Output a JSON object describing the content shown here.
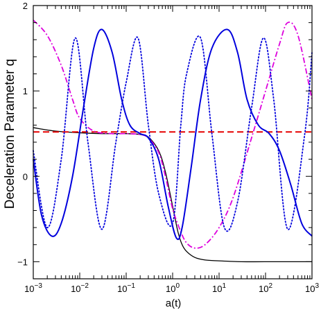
{
  "chart_data": {
    "type": "line",
    "title": "",
    "xlabel": "a(t)",
    "ylabel": "Deceleration Parameter q",
    "x_scale": "log",
    "xlim": [
      0.001,
      1000
    ],
    "ylim": [
      -1.2,
      2.0
    ],
    "grid": false,
    "legend": "none",
    "x_ticks": [
      {
        "value": 0.001,
        "base": "10",
        "exp": "−3"
      },
      {
        "value": 0.01,
        "base": "10",
        "exp": "−2"
      },
      {
        "value": 0.1,
        "base": "10",
        "exp": "−1"
      },
      {
        "value": 1,
        "base": "10",
        "exp": "0"
      },
      {
        "value": 10,
        "base": "10",
        "exp": "1"
      },
      {
        "value": 100,
        "base": "10",
        "exp": "2"
      },
      {
        "value": 1000,
        "base": "10",
        "exp": "3"
      }
    ],
    "y_ticks": [
      {
        "value": -1,
        "label": "−1"
      },
      {
        "value": 0,
        "label": "0"
      },
      {
        "value": 1,
        "label": "1"
      },
      {
        "value": 2,
        "label": "2"
      }
    ],
    "series": [
      {
        "color": "#000000",
        "style": "solid",
        "x": [
          0.001,
          0.003,
          0.01,
          0.03,
          0.1,
          0.2,
          0.3,
          0.5,
          0.7,
          1.0,
          1.3,
          1.6,
          2,
          3,
          5,
          10,
          30,
          100,
          1000
        ],
        "y": [
          0.57,
          0.53,
          0.51,
          0.5,
          0.5,
          0.49,
          0.46,
          0.3,
          0.05,
          -0.35,
          -0.65,
          -0.8,
          -0.88,
          -0.95,
          -0.98,
          -0.99,
          -1.0,
          -1.0,
          -1.0
        ]
      },
      {
        "color": "#e60000",
        "style": "dashed",
        "x": [
          0.001,
          1000
        ],
        "y": [
          0.52,
          0.52
        ]
      },
      {
        "color": "#dd00dd",
        "style": "dashdot",
        "x": [
          0.001,
          0.002,
          0.004,
          0.007,
          0.01,
          0.02,
          0.05,
          0.1,
          0.2,
          0.3,
          0.5,
          0.7,
          1.0,
          1.5,
          2,
          3,
          5,
          10,
          20,
          50,
          100,
          200,
          300,
          500,
          1000
        ],
        "y": [
          1.83,
          1.65,
          1.3,
          0.9,
          0.68,
          0.53,
          0.5,
          0.5,
          0.49,
          0.45,
          0.28,
          0.0,
          -0.38,
          -0.65,
          -0.78,
          -0.84,
          -0.8,
          -0.6,
          -0.25,
          0.45,
          1.0,
          1.55,
          1.8,
          1.65,
          0.9
        ]
      },
      {
        "color": "#0000dd",
        "style": "dotted",
        "x": [
          0.001,
          0.002,
          0.004,
          0.008,
          0.015,
          0.03,
          0.06,
          0.1,
          0.18,
          0.3,
          0.5,
          1.0,
          1.5,
          2,
          4,
          7,
          13,
          25,
          50,
          90,
          150,
          300,
          700,
          1000
        ],
        "y": [
          0.3,
          -0.6,
          0.2,
          1.62,
          0.4,
          -0.62,
          0.4,
          1.1,
          1.62,
          0.6,
          -0.2,
          -0.55,
          0.6,
          1.2,
          1.62,
          0.5,
          -0.6,
          -0.3,
          0.8,
          1.62,
          0.9,
          -0.62,
          0.5,
          1.45
        ]
      },
      {
        "color": "#0000dd",
        "style": "solid",
        "x": [
          0.001,
          0.0015,
          0.0025,
          0.004,
          0.007,
          0.012,
          0.02,
          0.03,
          0.05,
          0.08,
          0.12,
          0.2,
          0.3,
          0.5,
          0.8,
          1.2,
          1.6,
          2.5,
          4,
          7,
          15,
          25,
          40,
          70,
          120,
          200,
          350,
          600,
          1000
        ],
        "y": [
          0.2,
          -0.45,
          -0.7,
          -0.55,
          0.0,
          0.8,
          1.5,
          1.72,
          1.45,
          0.9,
          0.6,
          0.5,
          0.45,
          0.2,
          -0.35,
          -0.72,
          -0.6,
          0.1,
          0.9,
          1.5,
          1.72,
          1.45,
          0.9,
          0.6,
          0.5,
          0.3,
          -0.1,
          -0.55,
          -0.7
        ]
      }
    ]
  }
}
